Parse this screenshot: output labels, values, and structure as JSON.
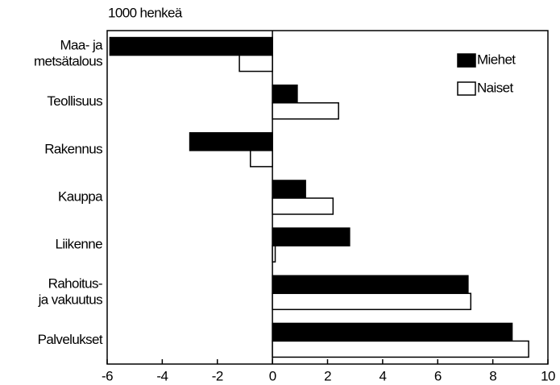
{
  "chart_data": {
    "type": "barh",
    "ylabel": "1000 henkeä",
    "categories": [
      "Maa- ja\nmetsätalous",
      "Teollisuus",
      "Rakennus",
      "Kauppa",
      "Liikenne",
      "Rahoitus-\nja vakuutus",
      "Palvelukset"
    ],
    "series": [
      {
        "name": "Miehet",
        "color": "#000000",
        "values": [
          -5.9,
          0.9,
          -3.0,
          1.2,
          2.8,
          7.1,
          8.7
        ]
      },
      {
        "name": "Naiset",
        "color": "#ffffff",
        "values": [
          -1.2,
          2.4,
          -0.8,
          2.2,
          0.1,
          7.2,
          9.3
        ]
      }
    ],
    "xlim": [
      -6,
      10
    ],
    "xticks": [
      -6,
      -4,
      -2,
      0,
      2,
      4,
      6,
      8,
      10
    ],
    "legend": "upper right",
    "grid": false
  }
}
